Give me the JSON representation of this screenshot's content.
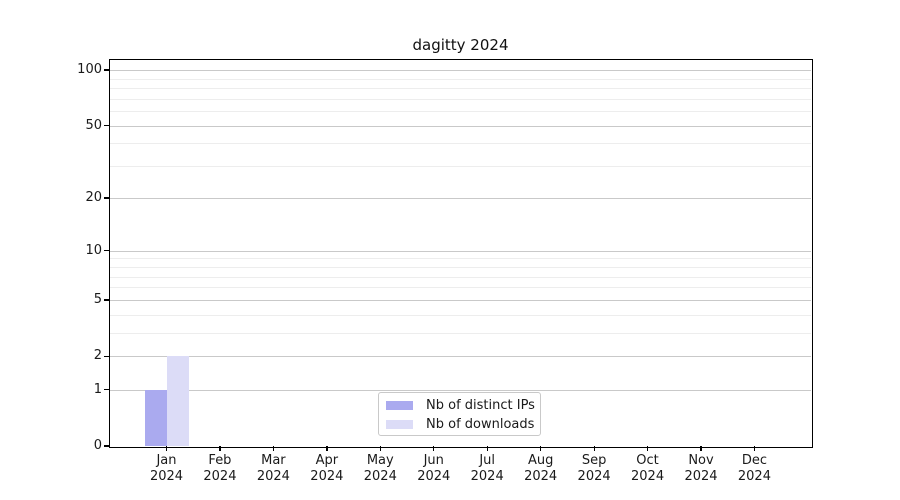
{
  "chart_data": {
    "type": "bar",
    "title": "dagitty 2024",
    "categories": [
      "Jan",
      "Feb",
      "Mar",
      "Apr",
      "May",
      "Jun",
      "Jul",
      "Aug",
      "Sep",
      "Oct",
      "Nov",
      "Dec"
    ],
    "x_year_label": "2024",
    "series": [
      {
        "name": "Nb of distinct IPs",
        "color": "#aaaaef",
        "values": [
          1,
          0,
          0,
          0,
          0,
          0,
          0,
          0,
          0,
          0,
          0,
          0
        ]
      },
      {
        "name": "Nb of downloads",
        "color": "#dcdcf7",
        "values": [
          2,
          0,
          0,
          0,
          0,
          0,
          0,
          0,
          0,
          0,
          0,
          0
        ]
      }
    ],
    "y_ticks": [
      0,
      1,
      2,
      5,
      10,
      20,
      50,
      100
    ],
    "y_minor_gridlines": [
      3,
      4,
      6,
      7,
      8,
      9,
      30,
      40,
      60,
      70,
      80,
      90
    ],
    "y_scale": "log1p",
    "ylim": [
      0,
      113
    ],
    "grid": "horizontal",
    "legend_position": "bottom-center",
    "colors": {
      "grid_major": "#c9c9c9",
      "grid_minor": "#ededed",
      "spine": "#000000",
      "text": "#1a1a1a",
      "background": "#ffffff"
    }
  }
}
